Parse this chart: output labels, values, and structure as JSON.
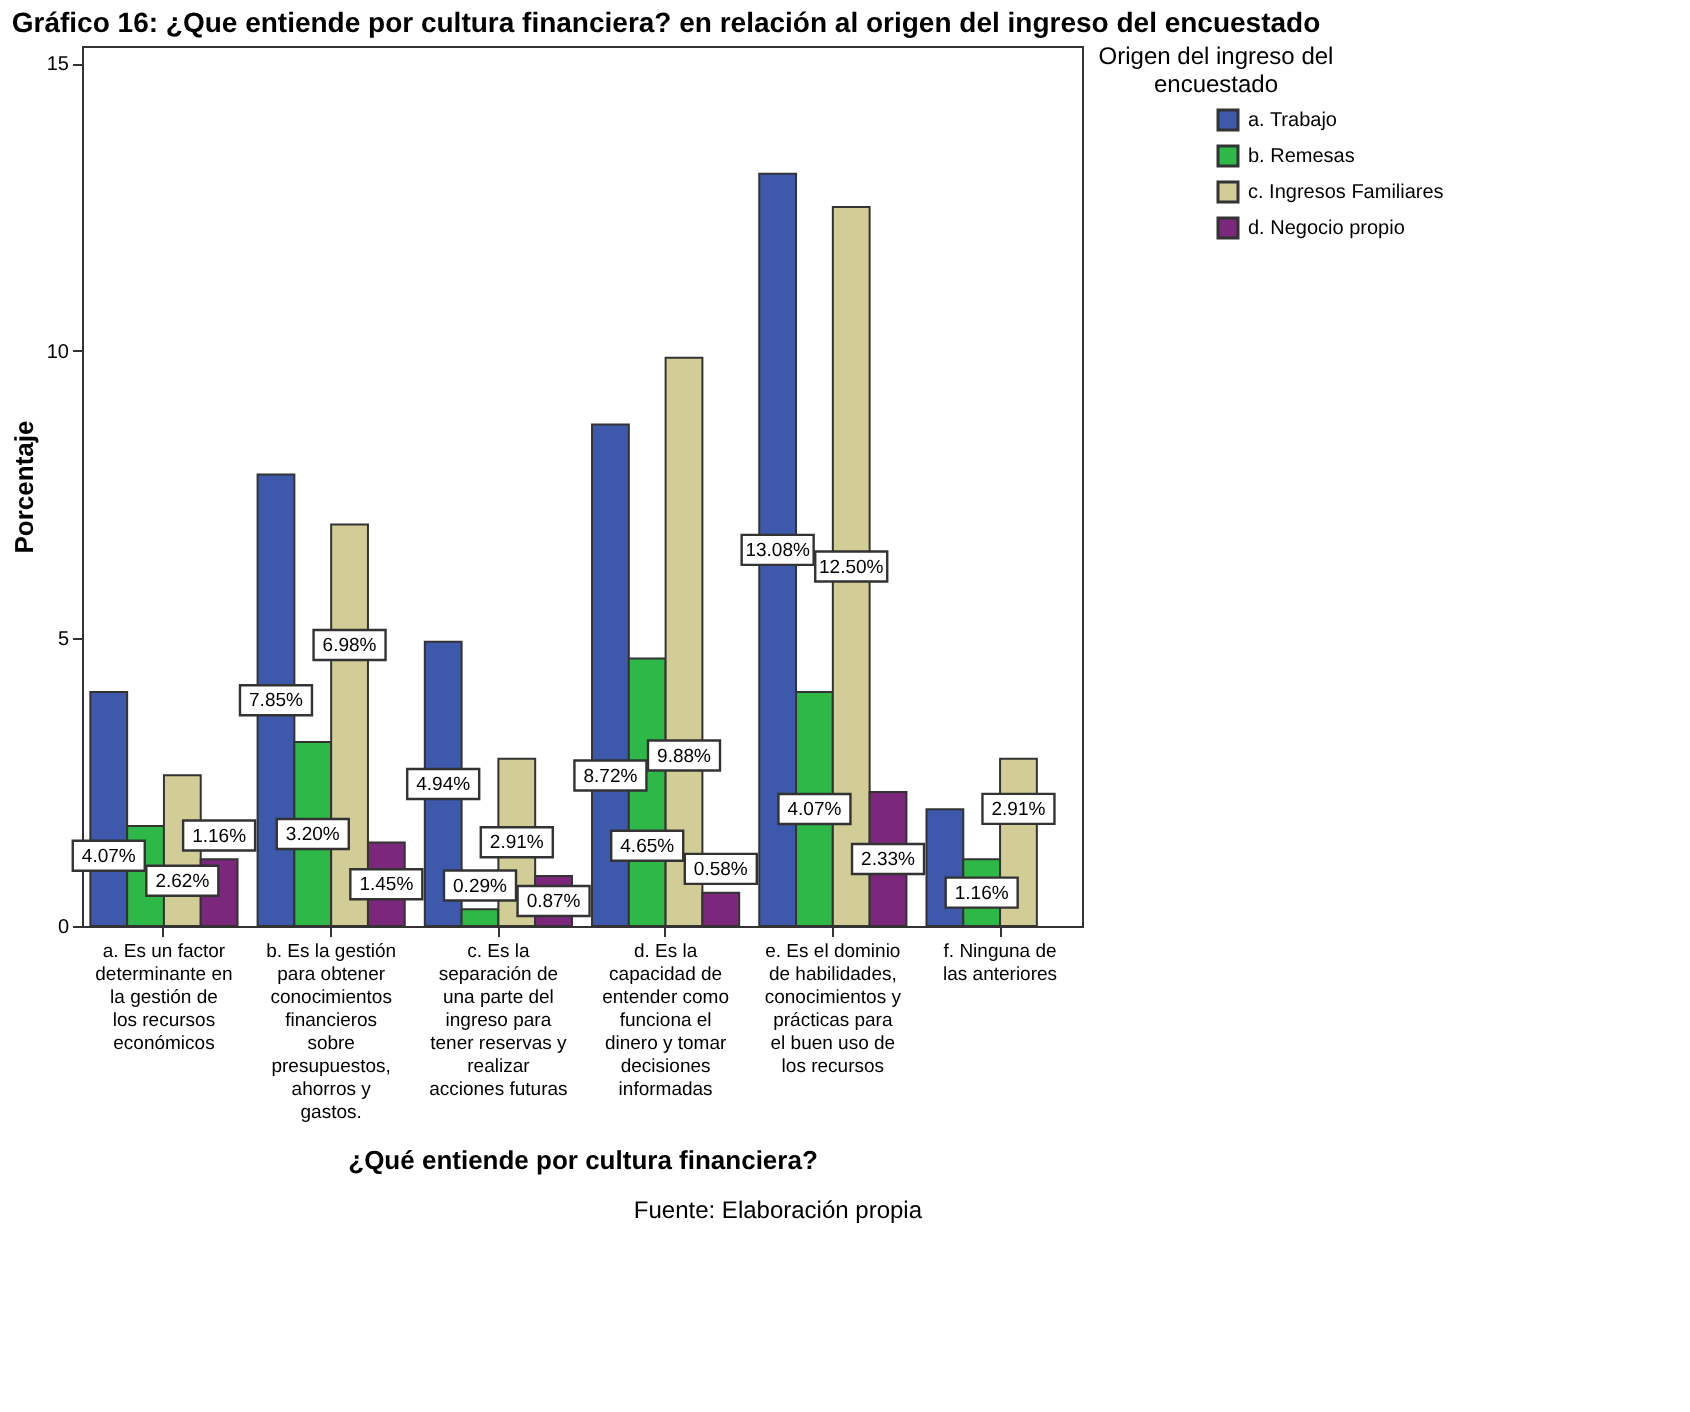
{
  "chart_data": {
    "type": "bar",
    "title": "Gráfico 16: ¿Que entiende por cultura financiera? en relación al origen del ingreso del encuestado",
    "xlabel": "¿Qué entiende por cultura financiera?",
    "ylabel": "Porcentaje",
    "legend_title": "Origen del ingreso del encuestado",
    "annotations": [
      "Fuente: Elaboración propia"
    ],
    "categories": [
      "a. Es un factor determinante en la gestión de los recursos económicos",
      "b. Es la gestión para obtener conocimientos financieros sobre presupuestos, ahorros y gastos.",
      "c. Es la separación de una parte del ingreso para tener reservas y realizar acciones futuras",
      "d. Es la capacidad de entender como funciona el dinero y tomar decisiones informadas",
      "e. Es el dominio de habilidades, conocimientos y prácticas para el buen uso de los recursos",
      "f. Ninguna de las anteriores"
    ],
    "series": [
      {
        "name": "a. Trabajo",
        "color": "#3e58ac",
        "values": [
          4.07,
          7.85,
          4.94,
          8.72,
          13.08,
          2.03
        ],
        "value_labels": [
          "4.07%",
          "7.85%",
          "4.94%",
          "8.72%",
          "13.08%",
          null
        ]
      },
      {
        "name": "b. Remesas",
        "color": "#2eb848",
        "values": [
          1.74,
          3.2,
          0.29,
          4.65,
          4.07,
          1.16
        ],
        "value_labels": [
          null,
          "3.20%",
          "0.29%",
          "4.65%",
          "4.07%",
          "1.16%"
        ]
      },
      {
        "name": "c. Ingresos Familiares",
        "color": "#d2cc96",
        "values": [
          2.62,
          6.98,
          2.91,
          9.88,
          12.5,
          2.91
        ],
        "value_labels": [
          "2.62%",
          "6.98%",
          "2.91%",
          "9.88%",
          "12.50%",
          "2.91%"
        ]
      },
      {
        "name": "d. Negocio propio",
        "color": "#7b287c",
        "values": [
          1.16,
          1.45,
          0.87,
          0.58,
          2.33,
          null
        ],
        "value_labels": [
          "1.16%",
          "1.45%",
          "0.87%",
          "0.58%",
          "2.33%",
          null
        ]
      }
    ],
    "ylim": [
      0,
      15.3
    ],
    "yticks": [
      0,
      5,
      10,
      15
    ],
    "grid": false,
    "legend": "top right"
  }
}
